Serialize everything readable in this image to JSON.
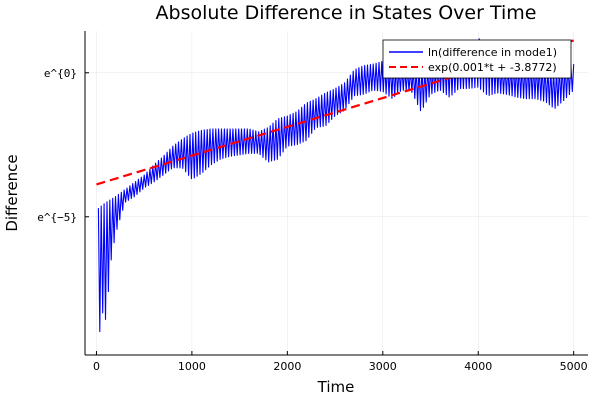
{
  "chart_data": {
    "type": "line",
    "title": "Absolute Difference in States Over Time",
    "xlabel": "Time",
    "ylabel": "Difference",
    "xlim": [
      -120,
      5150
    ],
    "ylim": [
      -9.8,
      1.45
    ],
    "x_ticks": [
      0,
      1000,
      2000,
      3000,
      4000,
      5000
    ],
    "x_tick_labels": [
      "0",
      "1000",
      "2000",
      "3000",
      "4000",
      "5000"
    ],
    "y_ticks": [
      0,
      -5
    ],
    "y_tick_labels": [
      "e^{0}",
      "e^{−5}"
    ],
    "grid": true,
    "legend_position": "top-right",
    "series": [
      {
        "name": "ln(difference in mode1)",
        "color": "#0000ff",
        "style": "solid",
        "envelope_t": [
          20,
          60,
          100,
          150,
          200,
          300,
          400,
          500,
          600,
          700,
          800,
          900,
          1000,
          1100,
          1200,
          1300,
          1400,
          1500,
          1600,
          1700,
          1800,
          1900,
          2000,
          2100,
          2200,
          2300,
          2400,
          2500,
          2600,
          2700,
          2800,
          2900,
          3000,
          3100,
          3200,
          3300,
          3400,
          3500,
          3600,
          3700,
          3800,
          3900,
          4000,
          4100,
          4200,
          4300,
          4400,
          4500,
          4600,
          4700,
          4800,
          4900,
          5000
        ],
        "envelope_upper": [
          -4.7,
          -4.6,
          -4.5,
          -4.4,
          -4.3,
          -4.05,
          -3.8,
          -3.55,
          -3.2,
          -2.9,
          -2.55,
          -2.3,
          -2.1,
          -2.0,
          -1.95,
          -1.95,
          -1.95,
          -1.95,
          -1.95,
          -2.05,
          -1.9,
          -1.6,
          -1.5,
          -1.35,
          -1.05,
          -0.9,
          -0.7,
          -0.55,
          -0.35,
          0.1,
          0.25,
          0.3,
          0.4,
          0.3,
          0.2,
          0.1,
          0.25,
          0.15,
          0.4,
          0.55,
          0.55,
          0.5,
          1.2,
          1.0,
          0.4,
          0.2,
          0.25,
          0.35,
          0.3,
          0.2,
          0.1,
          0.3,
          0.3
        ],
        "envelope_lower": [
          -9.4,
          -8.3,
          -8.6,
          -6.6,
          -5.6,
          -4.5,
          -4.3,
          -4.0,
          -3.8,
          -3.55,
          -3.3,
          -3.3,
          -3.7,
          -3.5,
          -3.2,
          -3.0,
          -2.9,
          -2.85,
          -2.8,
          -2.8,
          -3.1,
          -3.0,
          -2.55,
          -2.5,
          -2.35,
          -1.9,
          -1.85,
          -1.5,
          -1.3,
          -0.8,
          -0.75,
          -0.6,
          -0.65,
          -0.9,
          -0.6,
          -0.65,
          -1.35,
          -0.75,
          -0.6,
          -0.85,
          -0.55,
          -0.55,
          -0.5,
          -0.8,
          -0.7,
          -0.75,
          -0.85,
          -0.9,
          -0.9,
          -1.0,
          -1.25,
          -0.95,
          -0.6
        ],
        "cycle_period": 30
      },
      {
        "name": "exp(0.001*t + -3.8772)",
        "color": "#ff0000",
        "style": "dashed",
        "x": [
          0,
          5000
        ],
        "y": [
          -3.8772,
          1.1228
        ]
      }
    ]
  }
}
